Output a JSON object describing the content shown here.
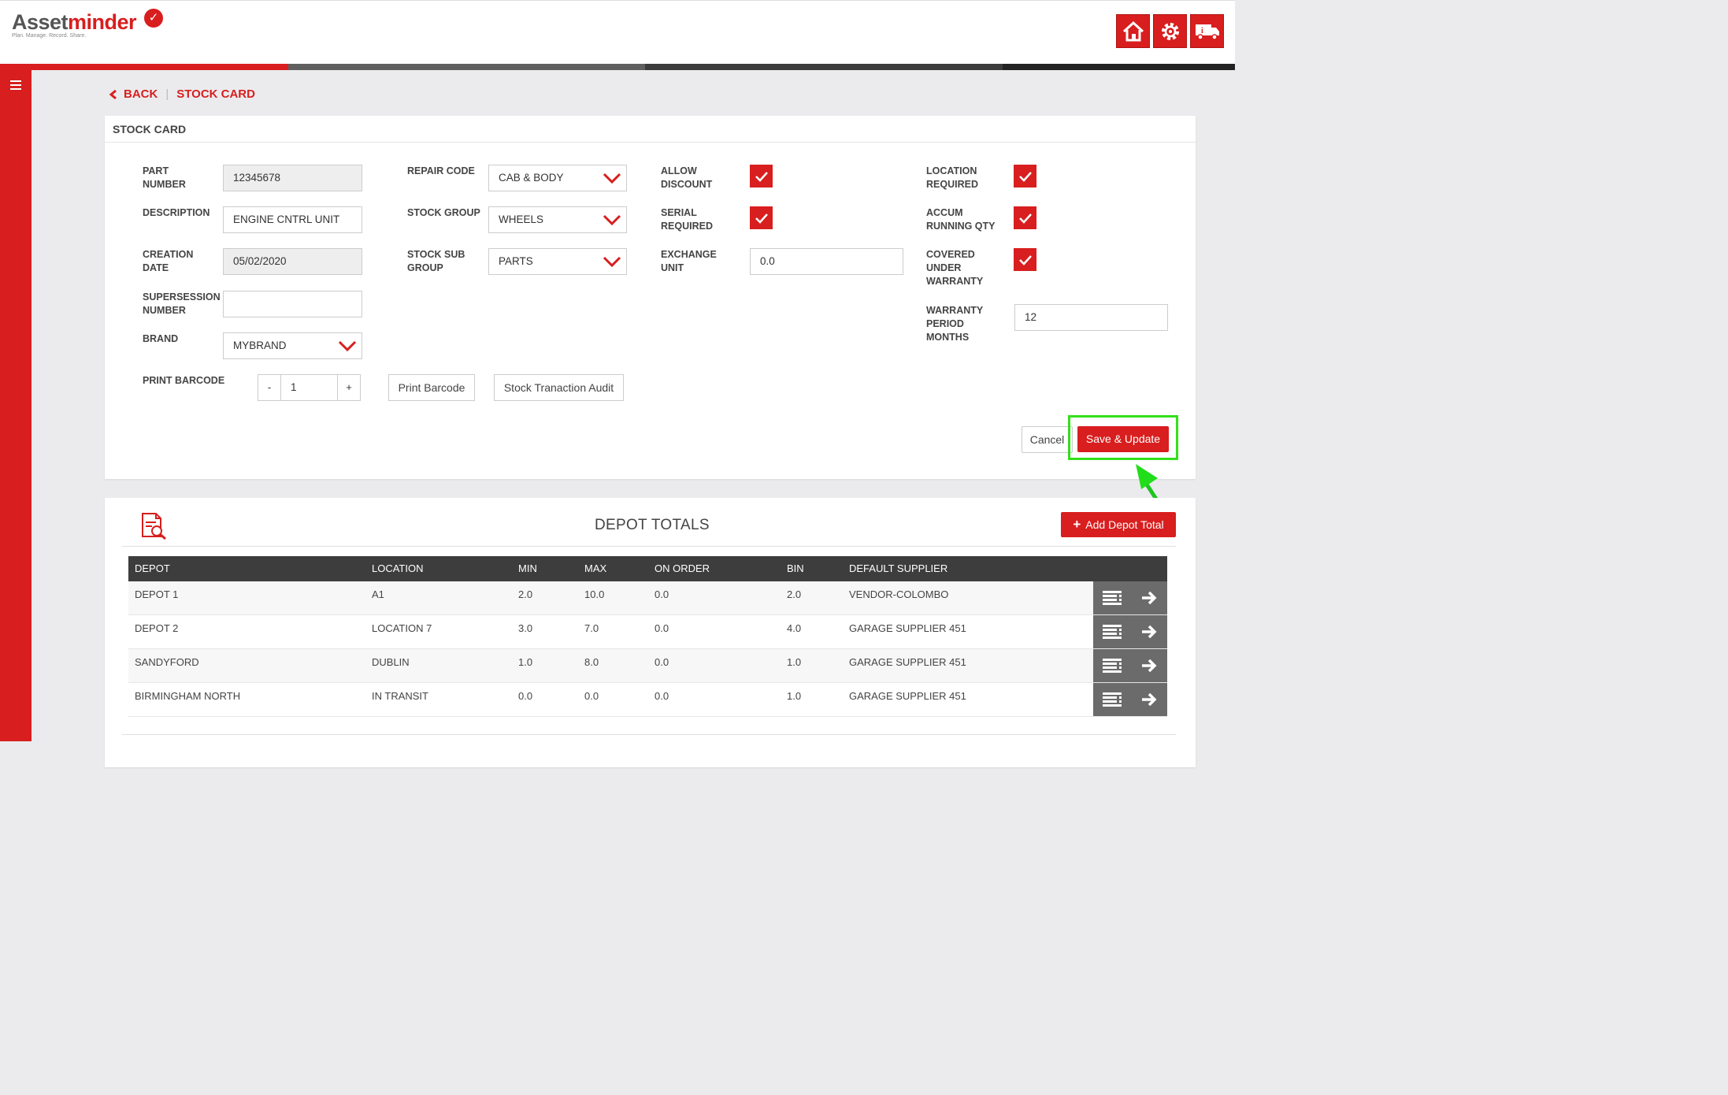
{
  "brand": {
    "name_part1": "Asset",
    "name_part2": "minder",
    "tagline": "Plan. Manage. Record. Share."
  },
  "header": {
    "buttons": [
      "home-icon",
      "gear-icon",
      "truck-info-icon"
    ]
  },
  "breadcrumb": {
    "back": "BACK",
    "current": "STOCK CARD"
  },
  "form": {
    "title": "STOCK CARD",
    "part_number_label": "PART NUMBER",
    "part_number": "12345678",
    "description_label": "DESCRIPTION",
    "description": "ENGINE CNTRL UNIT",
    "creation_date_label": "CREATION DATE",
    "creation_date": "05/02/2020",
    "supersession_label": "SUPERSESSION NUMBER",
    "supersession": "",
    "brand_label": "BRAND",
    "brand": "MYBRAND",
    "print_barcode_label": "PRINT BARCODE",
    "barcode_qty": "1",
    "minus": "-",
    "plus": "+",
    "repair_code_label": "REPAIR CODE",
    "repair_code": "CAB & BODY",
    "stock_group_label": "STOCK GROUP",
    "stock_group": "WHEELS",
    "stock_sub_group_label": "STOCK SUB GROUP",
    "stock_sub_group": "PARTS",
    "allow_discount_label": "ALLOW DISCOUNT",
    "allow_discount": true,
    "serial_required_label": "SERIAL REQUIRED",
    "serial_required": true,
    "exchange_unit_label": "EXCHANGE UNIT",
    "exchange_unit": "0.0",
    "location_required_label": "LOCATION REQUIRED",
    "location_required": true,
    "accum_running_qty_label": "ACCUM RUNNING QTY",
    "accum_running_qty": true,
    "covered_warranty_label": "COVERED UNDER WARRANTY",
    "covered_warranty": true,
    "warranty_period_label": "WARRANTY PERIOD MONTHS",
    "warranty_period": "12",
    "print_barcode_button": "Print Barcode",
    "audit_button": "Stock Tranaction Audit",
    "cancel_button": "Cancel",
    "save_button": "Save & Update"
  },
  "depot": {
    "title": "DEPOT TOTALS",
    "add_button": "Add Depot Total",
    "columns": [
      "DEPOT",
      "LOCATION",
      "MIN",
      "MAX",
      "ON ORDER",
      "BIN",
      "DEFAULT SUPPLIER"
    ],
    "rows": [
      [
        "DEPOT 1",
        "A1",
        "2.0",
        "10.0",
        "0.0",
        "2.0",
        "VENDOR-COLOMBO"
      ],
      [
        "DEPOT 2",
        "LOCATION 7",
        "3.0",
        "7.0",
        "0.0",
        "4.0",
        "GARAGE SUPPLIER 451"
      ],
      [
        "SANDYFORD",
        "DUBLIN",
        "1.0",
        "8.0",
        "0.0",
        "1.0",
        "GARAGE SUPPLIER 451"
      ],
      [
        "BIRMINGHAM NORTH",
        "IN TRANSIT",
        "0.0",
        "0.0",
        "0.0",
        "1.0",
        "GARAGE SUPPLIER 451"
      ]
    ]
  },
  "colors": {
    "accent": "#d81e1e",
    "table_header": "#3d3d3d",
    "highlight": "#33e01a"
  }
}
